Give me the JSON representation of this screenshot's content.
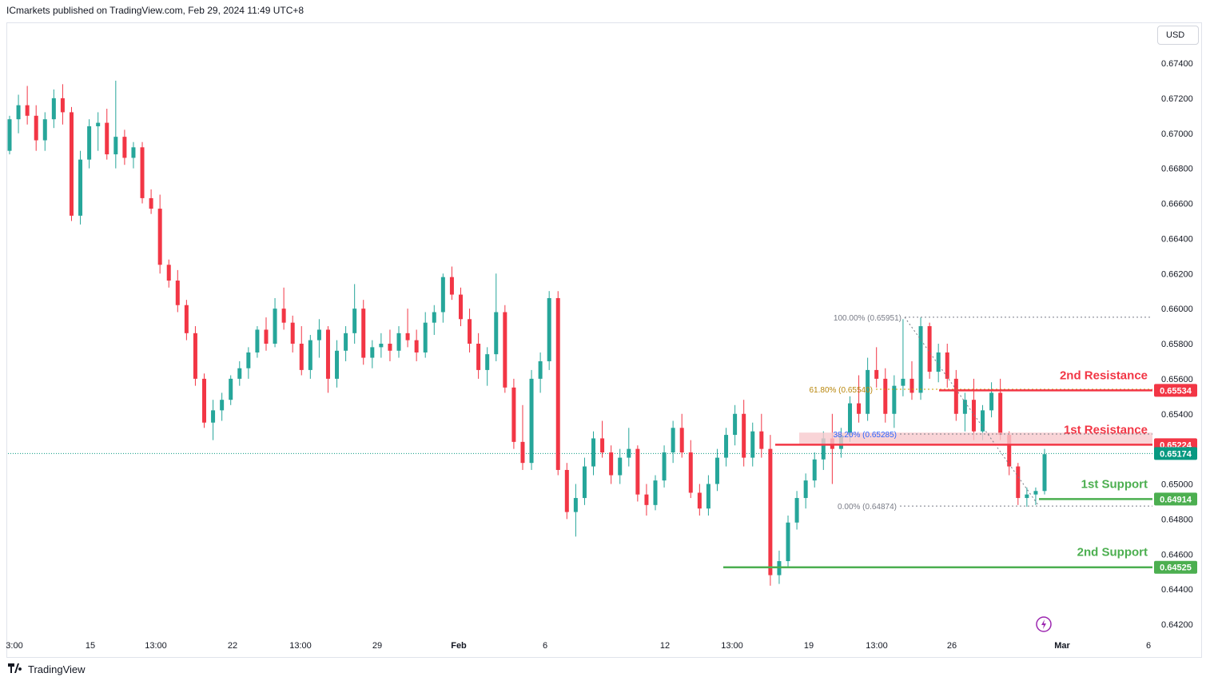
{
  "header": {
    "published": "ICmarkets published on TradingView.com, Feb 29, 2024 11:49 UTC+8"
  },
  "currency": "USD",
  "footer": {
    "brand": "TradingView",
    "logo_icon": "tradingview-logo-icon"
  },
  "colors": {
    "up": "#26a69a",
    "down": "#f23645",
    "resistance": "#f23645",
    "support": "#4caf50",
    "fib_zone": "#f8c9cd",
    "grid_text": "#131722",
    "current_price": "#089981",
    "alert_icon": "#9c27b0"
  },
  "chart_data": {
    "type": "candlestick",
    "symbol_scale": "price",
    "ylim": [
      0.6411,
      0.6758
    ],
    "y_ticks": [
      "0.67400",
      "0.67200",
      "0.67000",
      "0.66800",
      "0.66600",
      "0.66400",
      "0.66200",
      "0.66000",
      "0.65800",
      "0.65600",
      "0.65400",
      "0.65000",
      "0.64800",
      "0.64600",
      "0.64400",
      "0.64200"
    ],
    "x_ticks": [
      "3:00",
      "15",
      "13:00",
      "22",
      "13:00",
      "29",
      "Feb",
      "6",
      "12",
      "13:00",
      "19",
      "13:00",
      "26",
      "Mar",
      "6"
    ],
    "bold_x_ticks": [
      "Feb",
      "Mar"
    ],
    "current_price": "0.65174",
    "levels": [
      {
        "name": "2nd Resistance",
        "value": "0.65534",
        "kind": "resistance"
      },
      {
        "name": "1st Resistance",
        "value": "0.65224",
        "kind": "resistance"
      },
      {
        "name": "1st Support",
        "value": "0.64914",
        "kind": "support"
      },
      {
        "name": "2nd Support",
        "value": "0.64525",
        "kind": "support"
      }
    ],
    "fibonacci": [
      {
        "label": "100.00% (0.65951)",
        "ratio": 1.0,
        "value": 0.65951
      },
      {
        "label": "61.80% (0.65540)",
        "ratio": 0.618,
        "value": 0.6554
      },
      {
        "label": "38.20% (0.65285)",
        "ratio": 0.382,
        "value": 0.65285
      },
      {
        "label": "0.00% (0.64874)",
        "ratio": 0.0,
        "value": 0.64874
      }
    ],
    "candles_ohlc_approx": [
      [
        0.669,
        0.671,
        0.6688,
        0.6708
      ],
      [
        0.6708,
        0.6722,
        0.67,
        0.6716
      ],
      [
        0.6716,
        0.6727,
        0.6705,
        0.671
      ],
      [
        0.671,
        0.6716,
        0.669,
        0.6696
      ],
      [
        0.6696,
        0.6712,
        0.669,
        0.6708
      ],
      [
        0.6708,
        0.6725,
        0.6703,
        0.672
      ],
      [
        0.672,
        0.6728,
        0.6705,
        0.6712
      ],
      [
        0.6712,
        0.6715,
        0.665,
        0.6653
      ],
      [
        0.6653,
        0.669,
        0.6648,
        0.6685
      ],
      [
        0.6685,
        0.6708,
        0.668,
        0.6704
      ],
      [
        0.6704,
        0.6712,
        0.669,
        0.6706
      ],
      [
        0.6706,
        0.6714,
        0.6685,
        0.6688
      ],
      [
        0.6688,
        0.673,
        0.668,
        0.6698
      ],
      [
        0.6698,
        0.6702,
        0.6682,
        0.6686
      ],
      [
        0.6686,
        0.6695,
        0.668,
        0.6692
      ],
      [
        0.6692,
        0.6695,
        0.666,
        0.6663
      ],
      [
        0.6663,
        0.6668,
        0.6654,
        0.6657
      ],
      [
        0.6657,
        0.6665,
        0.662,
        0.6625
      ],
      [
        0.6625,
        0.6628,
        0.6612,
        0.6616
      ],
      [
        0.6616,
        0.6622,
        0.6598,
        0.6602
      ],
      [
        0.6602,
        0.6605,
        0.6582,
        0.6586
      ],
      [
        0.6586,
        0.659,
        0.6556,
        0.656
      ],
      [
        0.656,
        0.6563,
        0.6532,
        0.6535
      ],
      [
        0.6535,
        0.6548,
        0.6525,
        0.6542
      ],
      [
        0.6542,
        0.6552,
        0.6536,
        0.6548
      ],
      [
        0.6548,
        0.6562,
        0.6545,
        0.656
      ],
      [
        0.656,
        0.657,
        0.6556,
        0.6566
      ],
      [
        0.6566,
        0.6578,
        0.656,
        0.6575
      ],
      [
        0.6575,
        0.659,
        0.6572,
        0.6588
      ],
      [
        0.6588,
        0.6595,
        0.6576,
        0.658
      ],
      [
        0.658,
        0.6606,
        0.6578,
        0.66
      ],
      [
        0.66,
        0.6612,
        0.6588,
        0.6592
      ],
      [
        0.6592,
        0.6596,
        0.6575,
        0.658
      ],
      [
        0.658,
        0.659,
        0.6562,
        0.6565
      ],
      [
        0.6565,
        0.6585,
        0.656,
        0.6582
      ],
      [
        0.6582,
        0.6594,
        0.6572,
        0.6588
      ],
      [
        0.6588,
        0.659,
        0.6552,
        0.656
      ],
      [
        0.656,
        0.6582,
        0.6555,
        0.6576
      ],
      [
        0.6576,
        0.659,
        0.657,
        0.6586
      ],
      [
        0.6586,
        0.6614,
        0.658,
        0.66
      ],
      [
        0.66,
        0.6605,
        0.6568,
        0.6572
      ],
      [
        0.6572,
        0.6582,
        0.6566,
        0.6578
      ],
      [
        0.6578,
        0.6586,
        0.6572,
        0.658
      ],
      [
        0.658,
        0.6588,
        0.657,
        0.6576
      ],
      [
        0.6576,
        0.659,
        0.6572,
        0.6586
      ],
      [
        0.6586,
        0.66,
        0.6578,
        0.6582
      ],
      [
        0.6582,
        0.6588,
        0.657,
        0.6575
      ],
      [
        0.6575,
        0.6598,
        0.6572,
        0.6592
      ],
      [
        0.6592,
        0.6602,
        0.6585,
        0.6598
      ],
      [
        0.6598,
        0.662,
        0.6592,
        0.6618
      ],
      [
        0.6618,
        0.6624,
        0.6605,
        0.6608
      ],
      [
        0.6608,
        0.6612,
        0.659,
        0.6594
      ],
      [
        0.6594,
        0.66,
        0.6575,
        0.658
      ],
      [
        0.658,
        0.6586,
        0.656,
        0.6565
      ],
      [
        0.6565,
        0.6578,
        0.6556,
        0.6574
      ],
      [
        0.6574,
        0.662,
        0.657,
        0.6598
      ],
      [
        0.6598,
        0.6602,
        0.6552,
        0.6555
      ],
      [
        0.6555,
        0.656,
        0.652,
        0.6524
      ],
      [
        0.6524,
        0.6545,
        0.6508,
        0.6512
      ],
      [
        0.6512,
        0.6565,
        0.6508,
        0.656
      ],
      [
        0.656,
        0.6575,
        0.6552,
        0.657
      ],
      [
        0.657,
        0.661,
        0.6565,
        0.6606
      ],
      [
        0.6606,
        0.661,
        0.6505,
        0.6508
      ],
      [
        0.6508,
        0.6512,
        0.648,
        0.6484
      ],
      [
        0.6484,
        0.65,
        0.647,
        0.6492
      ],
      [
        0.6492,
        0.6515,
        0.6488,
        0.651
      ],
      [
        0.651,
        0.653,
        0.6505,
        0.6526
      ],
      [
        0.6526,
        0.6536,
        0.6515,
        0.6518
      ],
      [
        0.6518,
        0.6522,
        0.65,
        0.6505
      ],
      [
        0.6505,
        0.652,
        0.65,
        0.6515
      ],
      [
        0.6515,
        0.6532,
        0.651,
        0.652
      ],
      [
        0.652,
        0.6522,
        0.649,
        0.6494
      ],
      [
        0.6494,
        0.65,
        0.6482,
        0.6488
      ],
      [
        0.6488,
        0.6505,
        0.6485,
        0.6502
      ],
      [
        0.6502,
        0.6522,
        0.6498,
        0.6518
      ],
      [
        0.6518,
        0.6536,
        0.6512,
        0.6532
      ],
      [
        0.6532,
        0.654,
        0.6515,
        0.6518
      ],
      [
        0.6518,
        0.6525,
        0.6492,
        0.6495
      ],
      [
        0.6495,
        0.65,
        0.6482,
        0.6486
      ],
      [
        0.6486,
        0.6505,
        0.6482,
        0.65
      ],
      [
        0.65,
        0.652,
        0.6496,
        0.6515
      ],
      [
        0.6515,
        0.6532,
        0.651,
        0.6528
      ],
      [
        0.6528,
        0.6545,
        0.6522,
        0.654
      ],
      [
        0.654,
        0.6548,
        0.651,
        0.6515
      ],
      [
        0.6515,
        0.6535,
        0.651,
        0.653
      ],
      [
        0.653,
        0.654,
        0.6515,
        0.652
      ],
      [
        0.652,
        0.6528,
        0.6442,
        0.6448
      ],
      [
        0.6448,
        0.6462,
        0.6443,
        0.6456
      ],
      [
        0.6456,
        0.6482,
        0.6452,
        0.6478
      ],
      [
        0.6478,
        0.6496,
        0.6474,
        0.6492
      ],
      [
        0.6492,
        0.6506,
        0.6486,
        0.6502
      ],
      [
        0.6502,
        0.6518,
        0.6498,
        0.6514
      ],
      [
        0.6514,
        0.653,
        0.6508,
        0.6526
      ],
      [
        0.6526,
        0.654,
        0.65,
        0.652
      ],
      [
        0.652,
        0.6532,
        0.6515,
        0.6528
      ],
      [
        0.6528,
        0.655,
        0.6524,
        0.6546
      ],
      [
        0.6546,
        0.6562,
        0.6535,
        0.654
      ],
      [
        0.654,
        0.6572,
        0.6536,
        0.6565
      ],
      [
        0.6565,
        0.6578,
        0.6555,
        0.656
      ],
      [
        0.656,
        0.6566,
        0.6535,
        0.654
      ],
      [
        0.654,
        0.6562,
        0.6532,
        0.6556
      ],
      [
        0.6556,
        0.6594,
        0.655,
        0.656
      ],
      [
        0.656,
        0.657,
        0.6548,
        0.6552
      ],
      [
        0.6552,
        0.6595,
        0.6548,
        0.659
      ],
      [
        0.659,
        0.6592,
        0.656,
        0.6564
      ],
      [
        0.6564,
        0.658,
        0.6558,
        0.6575
      ],
      [
        0.6575,
        0.658,
        0.6555,
        0.656
      ],
      [
        0.656,
        0.6565,
        0.6536,
        0.654
      ],
      [
        0.654,
        0.6552,
        0.653,
        0.6548
      ],
      [
        0.6548,
        0.656,
        0.6525,
        0.653
      ],
      [
        0.653,
        0.6545,
        0.6525,
        0.6542
      ],
      [
        0.6542,
        0.6558,
        0.6538,
        0.6552
      ],
      [
        0.6552,
        0.656,
        0.6525,
        0.6528
      ],
      [
        0.6528,
        0.653,
        0.6505,
        0.651
      ],
      [
        0.651,
        0.6512,
        0.6488,
        0.6492
      ],
      [
        0.6492,
        0.6498,
        0.6487,
        0.6494
      ],
      [
        0.6494,
        0.6498,
        0.6488,
        0.6496
      ],
      [
        0.6496,
        0.652,
        0.6494,
        0.6517
      ]
    ]
  }
}
